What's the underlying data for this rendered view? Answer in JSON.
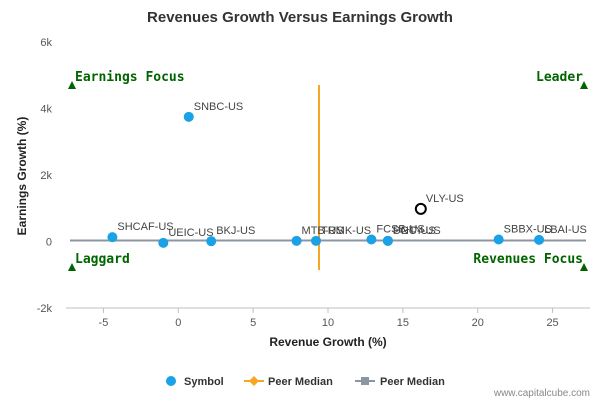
{
  "chart_data": {
    "type": "scatter",
    "title": "Revenues Growth Versus Earnings Growth",
    "xlabel": "Revenue Growth (%)",
    "ylabel": "Earnings Growth (%)",
    "xlim": [
      -7.5,
      27.5
    ],
    "ylim": [
      -2000,
      6000
    ],
    "xticks": [
      -5,
      0,
      5,
      10,
      15,
      20,
      25
    ],
    "yticks": [
      -2000,
      0,
      2000,
      4000,
      6000
    ],
    "ytick_labels": [
      "-2k",
      "0",
      "2k",
      "4k",
      "6k"
    ],
    "grid": false,
    "series": [
      {
        "name": "Symbol",
        "color": "#1aa1e6",
        "points": [
          {
            "label": "SNBC-US",
            "x": 0.7,
            "y": 3750
          },
          {
            "label": "SHCAF-US",
            "x": -4.4,
            "y": 130
          },
          {
            "label": "UEIC-US",
            "x": -1.0,
            "y": -40
          },
          {
            "label": "BKJ-US",
            "x": 2.2,
            "y": 10
          },
          {
            "label": "MTB-US",
            "x": 7.9,
            "y": 20
          },
          {
            "label": "TRMK-US",
            "x": 9.2,
            "y": 20
          },
          {
            "label": "FCSB-US",
            "x": 12.9,
            "y": 60
          },
          {
            "label": "PGC-US",
            "x": 14.0,
            "y": 20
          },
          {
            "label": "UNTY-US",
            "x": 14.0,
            "y": 20
          },
          {
            "label": "SBBX-US",
            "x": 21.4,
            "y": 60
          },
          {
            "label": "LBAI-US",
            "x": 24.1,
            "y": 50
          }
        ]
      },
      {
        "name": "Peer Median",
        "kind": "vertical-line",
        "color": "#f5a623",
        "x": 9.4
      },
      {
        "name": "Peer Median",
        "kind": "horizontal-line",
        "color": "#8c96a3",
        "y": 30
      }
    ],
    "highlight": {
      "label": "VLY-US",
      "x": 16.2,
      "y": 980
    },
    "quadrants": {
      "top_left": "Earnings Focus",
      "top_right": "Leader",
      "bottom_left": "Laggard",
      "bottom_right": "Revenues Focus",
      "color": "#006400"
    },
    "legend_position": "bottom-center"
  },
  "credit": "www.capitalcube.com"
}
